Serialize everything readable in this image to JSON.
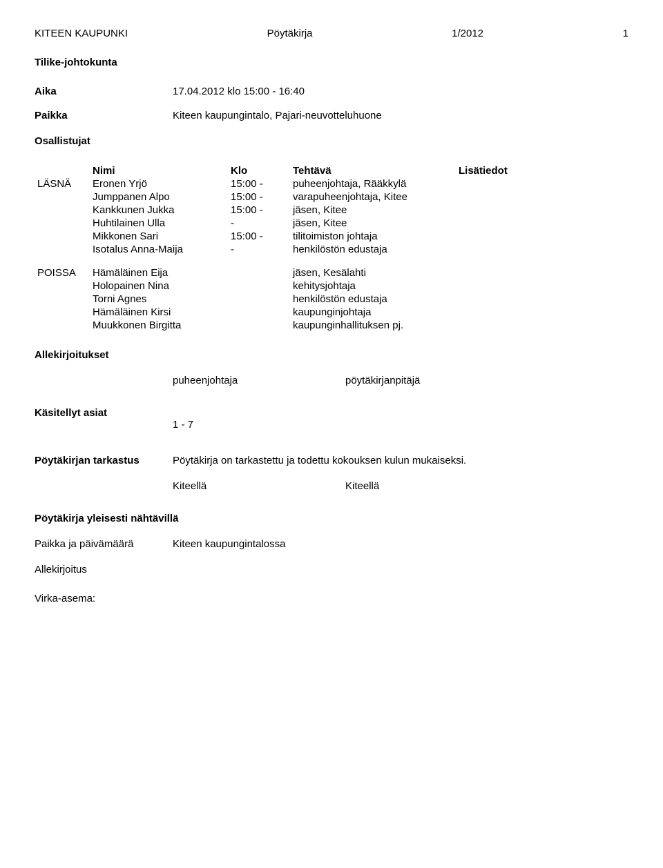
{
  "header": {
    "org": "KITEEN KAUPUNKI",
    "doc_type": "Pöytäkirja",
    "doc_number": "1/2012",
    "page": "1"
  },
  "committee": "Tilike-johtokunta",
  "meeting": {
    "aika_label": "Aika",
    "aika_value": "17.04.2012 klo 15:00 - 16:40",
    "paikka_label": "Paikka",
    "paikka_value": "Kiteen kaupungintalo, Pajari-neuvotteluhuone"
  },
  "participants": {
    "heading": "Osallistujat",
    "table_headers": {
      "name": "Nimi",
      "klo": "Klo",
      "task": "Tehtävä",
      "info": "Lisätiedot"
    },
    "present_label": "LÄSNÄ",
    "absent_label": "POISSA",
    "present": [
      {
        "name": "Eronen Yrjö",
        "klo": "15:00 -",
        "task": "puheenjohtaja, Rääkkylä"
      },
      {
        "name": "Jumppanen Alpo",
        "klo": "15:00 -",
        "task": "varapuheenjohtaja, Kitee"
      },
      {
        "name": "Kankkunen Jukka",
        "klo": "15:00 -",
        "task": "jäsen, Kitee"
      },
      {
        "name": "Huhtilainen  Ulla",
        "klo": "-",
        "task": "jäsen, Kitee"
      },
      {
        "name": "Mikkonen Sari",
        "klo": "15:00 -",
        "task": "tilitoimiston johtaja"
      },
      {
        "name": "Isotalus Anna-Maija",
        "klo": "-",
        "task": "henkilöstön edustaja"
      }
    ],
    "absent": [
      {
        "name": "Hämäläinen Eija",
        "klo": "",
        "task": "jäsen, Kesälahti"
      },
      {
        "name": "Holopainen Nina",
        "klo": "",
        "task": "kehitysjohtaja"
      },
      {
        "name": "Torni Agnes",
        "klo": "",
        "task": "henkilöstön edustaja"
      },
      {
        "name": "Hämäläinen Kirsi",
        "klo": "",
        "task": "kaupunginjohtaja"
      },
      {
        "name": "Muukkonen Birgitta",
        "klo": "",
        "task": "kaupunginhallituksen pj."
      }
    ]
  },
  "signatures": {
    "heading": "Allekirjoitukset",
    "chair": "puheenjohtaja",
    "secretary": "pöytäkirjanpitäjä"
  },
  "handled": {
    "heading": "Käsitellyt asiat",
    "range": "1 - 7"
  },
  "review": {
    "heading": "Pöytäkirjan tarkastus",
    "text": "Pöytäkirja on tarkastettu ja todettu kokouksen kulun mukaiseksi.",
    "city1": "Kiteellä",
    "city2": "Kiteellä"
  },
  "public_display": {
    "heading": "Pöytäkirja yleisesti nähtävillä",
    "place_label": "Paikka ja päivämäärä",
    "place_value": "Kiteen kaupungintalossa",
    "sig_label": "Allekirjoitus",
    "virka_label": "Virka-asema:"
  }
}
